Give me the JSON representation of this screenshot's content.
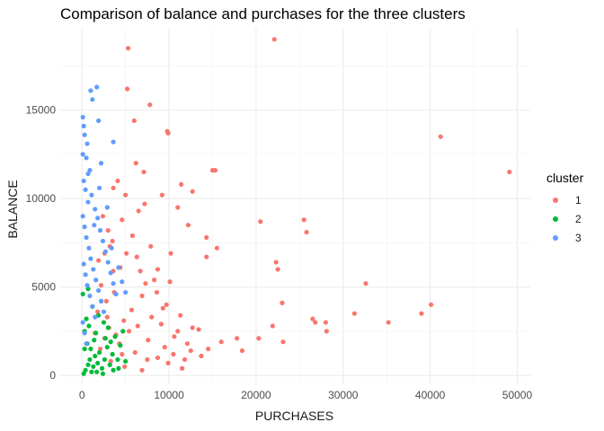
{
  "chart_data": {
    "type": "scatter",
    "title": "Comparison of balance and purchases for the three clusters",
    "xlabel": "PURCHASES",
    "ylabel": "BALANCE",
    "xlim": [
      -2500,
      51500
    ],
    "ylim": [
      -500,
      19600
    ],
    "x_ticks": [
      0,
      10000,
      20000,
      30000,
      40000,
      50000
    ],
    "x_tick_labels": [
      "0",
      "10000",
      "20000",
      "30000",
      "40000",
      "50000"
    ],
    "y_ticks": [
      0,
      5000,
      10000,
      15000
    ],
    "y_tick_labels": [
      "0",
      "5000",
      "10000",
      "15000"
    ],
    "grid": true,
    "legend": {
      "title": "cluster",
      "placement": "right"
    },
    "series": [
      {
        "name": "1",
        "color": "#F8766D",
        "points": [
          [
            22100,
            19000
          ],
          [
            5300,
            18500
          ],
          [
            7800,
            15300
          ],
          [
            5200,
            16200
          ],
          [
            6000,
            14400
          ],
          [
            9800,
            13800
          ],
          [
            9900,
            13700
          ],
          [
            41200,
            13500
          ],
          [
            49100,
            11500
          ],
          [
            15000,
            11600
          ],
          [
            15300,
            11600
          ],
          [
            6200,
            12000
          ],
          [
            7100,
            11500
          ],
          [
            12700,
            10400
          ],
          [
            11400,
            10800
          ],
          [
            9200,
            10200
          ],
          [
            11000,
            9500
          ],
          [
            20500,
            8700
          ],
          [
            25500,
            8800
          ],
          [
            25800,
            8100
          ],
          [
            12200,
            8500
          ],
          [
            14300,
            7800
          ],
          [
            15500,
            7200
          ],
          [
            14300,
            6700
          ],
          [
            22300,
            6400
          ],
          [
            22500,
            6000
          ],
          [
            32600,
            5200
          ],
          [
            31300,
            3500
          ],
          [
            35200,
            3000
          ],
          [
            39000,
            3500
          ],
          [
            40100,
            4000
          ],
          [
            26500,
            3200
          ],
          [
            26800,
            3000
          ],
          [
            28000,
            3000
          ],
          [
            28100,
            2500
          ],
          [
            21900,
            2800
          ],
          [
            20300,
            2100
          ],
          [
            23000,
            4100
          ],
          [
            23100,
            1900
          ],
          [
            17800,
            2100
          ],
          [
            18400,
            1400
          ],
          [
            16000,
            1900
          ],
          [
            13700,
            1100
          ],
          [
            14500,
            1500
          ],
          [
            11500,
            400
          ],
          [
            12500,
            1400
          ],
          [
            8300,
            5400
          ],
          [
            9700,
            4000
          ],
          [
            7900,
            7300
          ],
          [
            10200,
            6900
          ],
          [
            6300,
            6700
          ],
          [
            6500,
            9300
          ],
          [
            4600,
            8800
          ],
          [
            5000,
            10200
          ],
          [
            4100,
            11000
          ],
          [
            3600,
            10600
          ],
          [
            7200,
            9700
          ],
          [
            8700,
            6000
          ],
          [
            6900,
            4500
          ],
          [
            11300,
            3400
          ],
          [
            12700,
            2700
          ],
          [
            10600,
            2200
          ],
          [
            9500,
            1600
          ],
          [
            8700,
            1000
          ],
          [
            7500,
            900
          ],
          [
            6400,
            2800
          ],
          [
            4800,
            3100
          ],
          [
            3600,
            5900
          ],
          [
            3200,
            7300
          ],
          [
            2800,
            4200
          ],
          [
            2600,
            2100
          ],
          [
            3300,
            800
          ],
          [
            4900,
            500
          ],
          [
            6900,
            300
          ],
          [
            9900,
            700
          ],
          [
            2100,
            1500
          ],
          [
            3900,
            2300
          ],
          [
            5700,
            3700
          ],
          [
            4400,
            6100
          ],
          [
            2600,
            6900
          ],
          [
            3000,
            8200
          ],
          [
            5800,
            7900
          ],
          [
            1800,
            3600
          ],
          [
            2200,
            5100
          ],
          [
            7300,
            5200
          ],
          [
            9100,
            2900
          ],
          [
            10500,
            1200
          ],
          [
            11800,
            900
          ],
          [
            6100,
            1300
          ],
          [
            4300,
            1800
          ],
          [
            1500,
            2400
          ],
          [
            2900,
            3300
          ],
          [
            3700,
            4700
          ],
          [
            5400,
            2500
          ],
          [
            8000,
            3300
          ],
          [
            7600,
            2000
          ],
          [
            4600,
            1200
          ],
          [
            3100,
            2700
          ],
          [
            12100,
            1800
          ],
          [
            11000,
            2500
          ],
          [
            13400,
            2600
          ],
          [
            9300,
            3800
          ],
          [
            6700,
            5900
          ],
          [
            5100,
            6900
          ],
          [
            8600,
            4700
          ],
          [
            10100,
            5300
          ],
          [
            2400,
            9000
          ],
          [
            1900,
            6500
          ],
          [
            3500,
            7600
          ]
        ]
      },
      {
        "name": "2",
        "color": "#00BA38",
        "points": [
          [
            200,
            100
          ],
          [
            400,
            300
          ],
          [
            700,
            600
          ],
          [
            900,
            900
          ],
          [
            1100,
            200
          ],
          [
            1300,
            500
          ],
          [
            1500,
            1100
          ],
          [
            1800,
            700
          ],
          [
            2000,
            1300
          ],
          [
            2300,
            400
          ],
          [
            2600,
            900
          ],
          [
            2900,
            1600
          ],
          [
            3200,
            600
          ],
          [
            3500,
            1200
          ],
          [
            3800,
            2200
          ],
          [
            4100,
            900
          ],
          [
            4400,
            1700
          ],
          [
            600,
            1800
          ],
          [
            300,
            2500
          ],
          [
            500,
            3200
          ],
          [
            800,
            2800
          ],
          [
            1200,
            3900
          ],
          [
            1600,
            2400
          ],
          [
            1900,
            3400
          ],
          [
            2200,
            4200
          ],
          [
            2500,
            3000
          ],
          [
            100,
            4600
          ],
          [
            700,
            4900
          ],
          [
            300,
            1500
          ],
          [
            1000,
            1500
          ],
          [
            1400,
            2000
          ],
          [
            2700,
            2100
          ],
          [
            3000,
            2700
          ],
          [
            3300,
            1900
          ],
          [
            4700,
            2500
          ],
          [
            3600,
            300
          ],
          [
            2400,
            100
          ],
          [
            1700,
            200
          ],
          [
            5000,
            800
          ],
          [
            4200,
            400
          ]
        ]
      },
      {
        "name": "3",
        "color": "#619CFF",
        "points": [
          [
            1000,
            16100
          ],
          [
            1700,
            16300
          ],
          [
            1200,
            15600
          ],
          [
            100,
            14600
          ],
          [
            200,
            14100
          ],
          [
            300,
            13600
          ],
          [
            600,
            13100
          ],
          [
            1900,
            14400
          ],
          [
            3600,
            13200
          ],
          [
            2200,
            12000
          ],
          [
            100,
            12500
          ],
          [
            500,
            12300
          ],
          [
            900,
            11600
          ],
          [
            200,
            11000
          ],
          [
            400,
            10500
          ],
          [
            700,
            9800
          ],
          [
            1100,
            10200
          ],
          [
            1500,
            9400
          ],
          [
            1800,
            8900
          ],
          [
            2100,
            8200
          ],
          [
            2400,
            7600
          ],
          [
            2700,
            7000
          ],
          [
            3000,
            6400
          ],
          [
            3300,
            5800
          ],
          [
            3600,
            5200
          ],
          [
            3900,
            4600
          ],
          [
            100,
            9000
          ],
          [
            300,
            8400
          ],
          [
            500,
            7800
          ],
          [
            800,
            7200
          ],
          [
            1000,
            6600
          ],
          [
            1300,
            6000
          ],
          [
            1600,
            5400
          ],
          [
            1900,
            4800
          ],
          [
            2200,
            4200
          ],
          [
            2500,
            3600
          ],
          [
            200,
            6300
          ],
          [
            400,
            5700
          ],
          [
            600,
            5100
          ],
          [
            900,
            4500
          ],
          [
            1200,
            3900
          ],
          [
            1500,
            3300
          ],
          [
            100,
            3000
          ],
          [
            300,
            2400
          ],
          [
            500,
            1800
          ],
          [
            4200,
            6100
          ],
          [
            4600,
            5300
          ],
          [
            5000,
            4700
          ],
          [
            2000,
            10600
          ],
          [
            2900,
            9500
          ],
          [
            1400,
            8500
          ],
          [
            3400,
            7200
          ],
          [
            700,
            11400
          ]
        ]
      }
    ]
  }
}
